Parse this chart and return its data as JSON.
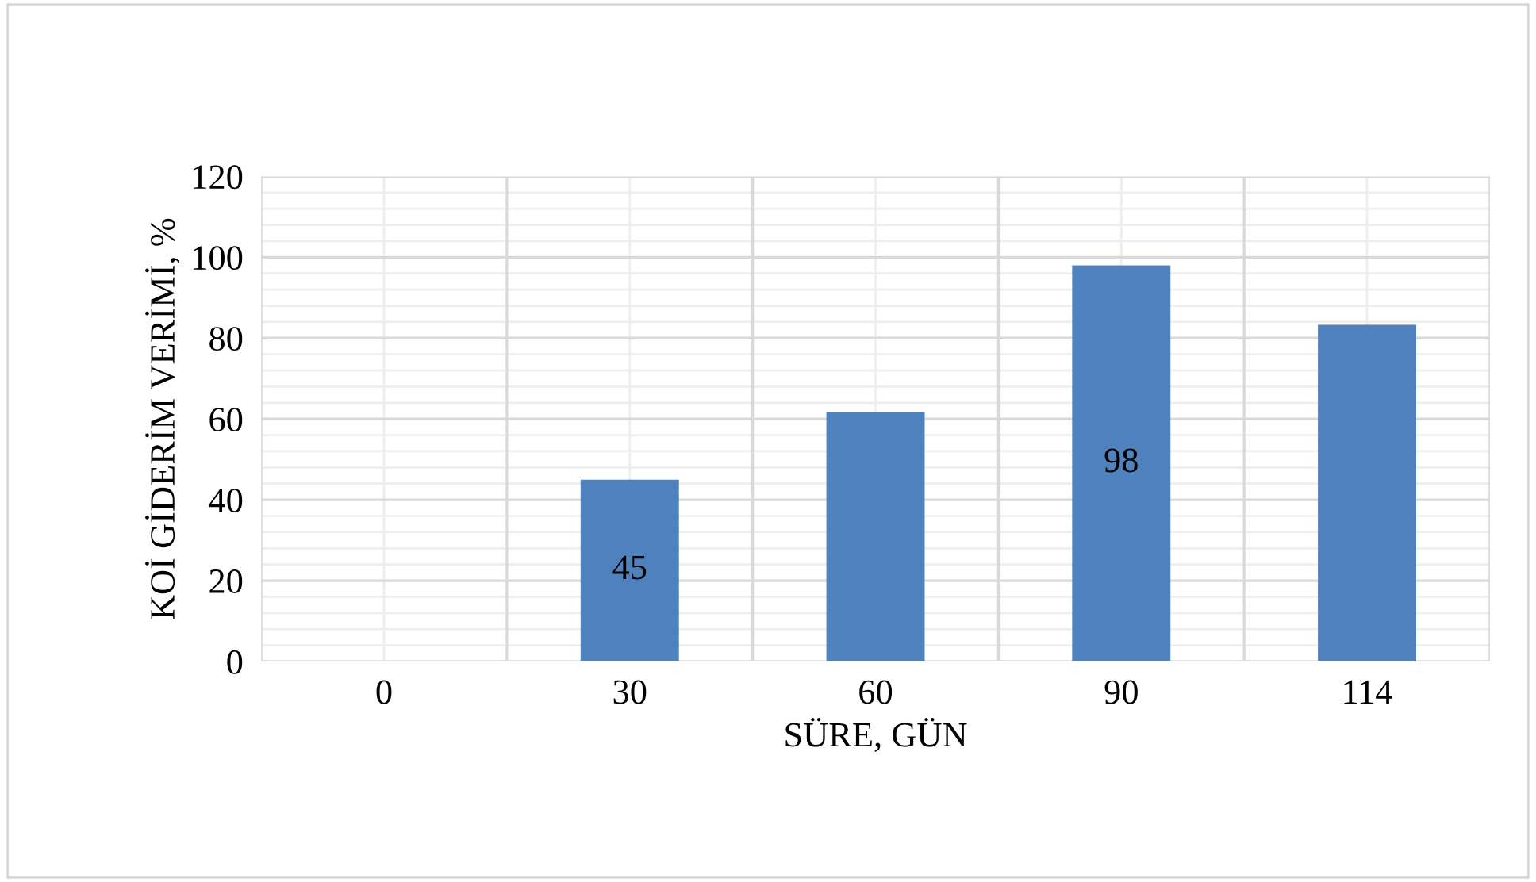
{
  "chart_data": {
    "type": "bar",
    "xlabel": "SÜRE, GÜN",
    "ylabel": "KOİ GİDERİM VERİMİ, %",
    "categories": [
      "0",
      "30",
      "60",
      "90",
      "114"
    ],
    "values": [
      0,
      45,
      61.7,
      98,
      83.3
    ],
    "value_labels": [
      null,
      "45",
      null,
      "98",
      null
    ],
    "color": "#4f81bd",
    "ylim": [
      0,
      120
    ],
    "yticks": [
      0,
      20,
      40,
      60,
      80,
      100,
      120
    ],
    "grid": true
  }
}
